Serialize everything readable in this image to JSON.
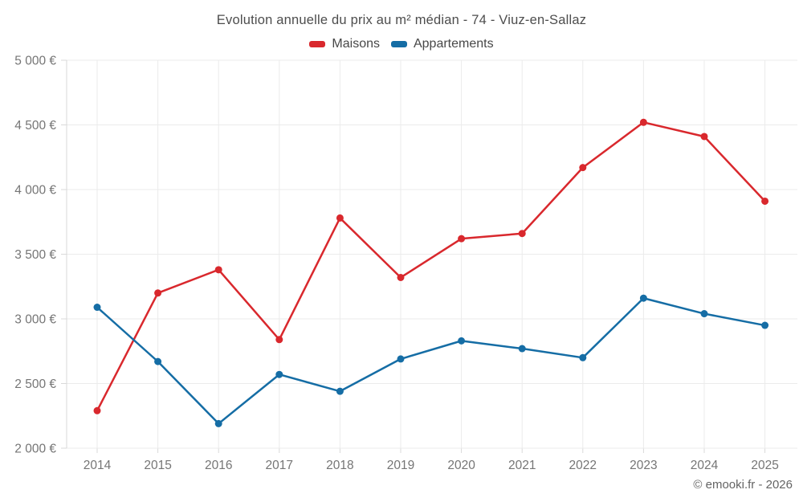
{
  "chart_data": {
    "type": "line",
    "title": "Evolution annuelle du prix au m² médian - 74 - Viuz-en-Sallaz",
    "categories": [
      "2014",
      "2015",
      "2016",
      "2017",
      "2018",
      "2019",
      "2020",
      "2021",
      "2022",
      "2023",
      "2024",
      "2025"
    ],
    "series": [
      {
        "name": "Maisons",
        "color": "#d9282d",
        "values": [
          2290,
          3200,
          3380,
          2840,
          3780,
          3320,
          3620,
          3660,
          4170,
          4520,
          4410,
          3910
        ]
      },
      {
        "name": "Appartements",
        "color": "#156da5",
        "values": [
          3090,
          2670,
          2190,
          2570,
          2440,
          2690,
          2830,
          2770,
          2700,
          3160,
          3040,
          2950
        ]
      }
    ],
    "ylim": [
      2000,
      5000
    ],
    "ytick_step": 500,
    "ytick_labels": [
      "2 000 €",
      "2 500 €",
      "3 000 €",
      "3 500 €",
      "4 000 €",
      "4 500 €",
      "5 000 €"
    ],
    "grid": true,
    "legend_position": "top",
    "gridline_color": "#ebebeb",
    "axis_color": "#d9d9d9"
  },
  "footer": {
    "credit": "© emooki.fr - 2026"
  }
}
